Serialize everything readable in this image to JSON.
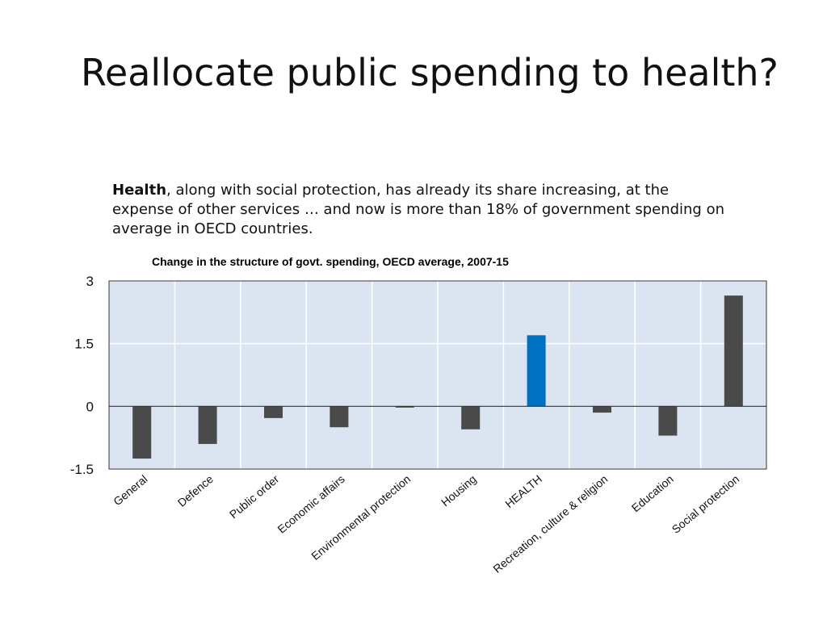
{
  "slide": {
    "title": "Reallocate public spending to health?",
    "body_bold": "Health",
    "body_rest": ", along with social protection, has already its share increasing, at the expense of other services … and now is more than 18% of government spending on average in OECD countries."
  },
  "chart_data": {
    "type": "bar",
    "title": "Change in the structure of govt. spending, OECD average, 2007-15",
    "xlabel": "",
    "ylabel": "",
    "categories": [
      "General",
      "Defence",
      "Public order",
      "Economic affairs",
      "Environmental protection",
      "Housing",
      "HEALTH",
      "Recreation, culture & religion",
      "Education",
      "Social protection"
    ],
    "values": [
      -1.25,
      -0.9,
      -0.28,
      -0.5,
      -0.03,
      -0.55,
      1.7,
      -0.15,
      -0.7,
      2.65
    ],
    "ylim": [
      -1.5,
      3
    ],
    "yticks": [
      "3",
      "1.5",
      "0",
      "-1.5"
    ],
    "ytick_values": [
      3,
      1.5,
      0,
      -1.5
    ],
    "grid": true,
    "colors": {
      "bar": "#4a4a4a",
      "highlight": "#0070c0",
      "plot_bg": "#dbe5f1",
      "grid": "#ffffff",
      "frame": "#333333"
    },
    "highlight_category": "HEALTH"
  }
}
